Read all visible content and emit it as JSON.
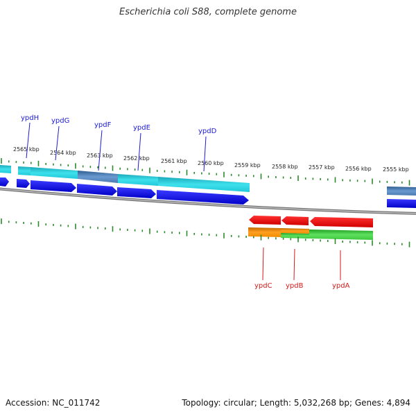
{
  "title": "Escherichia coli S88, complete genome",
  "accession": "Accession: NC_011742",
  "summary": "Topology: circular; Length: 5,032,268 bp; Genes: 4,894",
  "kbp_labels": [
    "2565 kbp",
    "2564 kbp",
    "2563 kbp",
    "2562 kbp",
    "2561 kbp",
    "2560 kbp",
    "2559 kbp",
    "2558 kbp",
    "2557 kbp",
    "2556 kbp",
    "2555 kbp"
  ],
  "forward_genes": [
    "ypdH",
    "ypdG",
    "ypdF",
    "ypdE",
    "ypdD"
  ],
  "reverse_genes": [
    "ypdC",
    "ypdB",
    "ypdA"
  ],
  "colors": {
    "cds_forward": "#0a0ae6",
    "cds_reverse": "#e60a0a",
    "feature_cyan": "#20c8d8",
    "feature_steel": "#4a7ab0",
    "feature_orange": "#f08c00",
    "feature_green": "#3cc83c",
    "tick_green": "#2a8a2a",
    "backbone": "#888888"
  }
}
